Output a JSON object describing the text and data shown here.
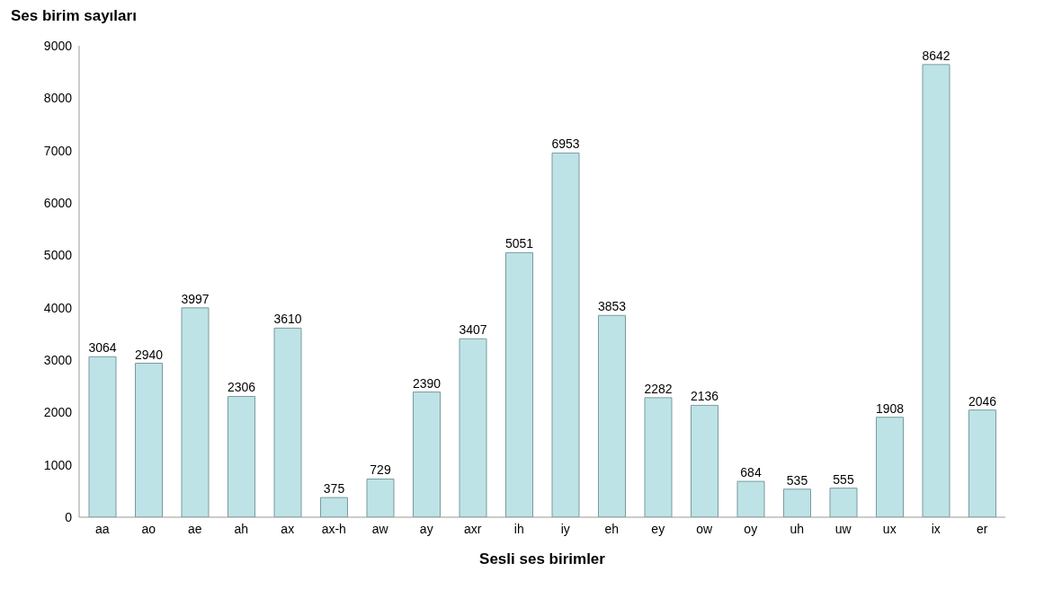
{
  "chart_data": {
    "type": "bar",
    "ylabel": "Ses birim sayıları",
    "xlabel": "Sesli ses birimler",
    "categories": [
      "aa",
      "ao",
      "ae",
      "ah",
      "ax",
      "ax-h",
      "aw",
      "ay",
      "axr",
      "ih",
      "iy",
      "eh",
      "ey",
      "ow",
      "oy",
      "uh",
      "uw",
      "ux",
      "ix",
      "er"
    ],
    "values": [
      3064,
      2940,
      3997,
      2306,
      3610,
      375,
      729,
      2390,
      3407,
      5051,
      6953,
      3853,
      2282,
      2136,
      684,
      535,
      555,
      1908,
      8642,
      2046
    ],
    "color": "#bde3e6",
    "ylim": [
      0,
      9000
    ],
    "yticks": [
      0,
      1000,
      2000,
      3000,
      4000,
      5000,
      6000,
      7000,
      8000,
      9000
    ],
    "grid": false,
    "data_labels": true
  }
}
